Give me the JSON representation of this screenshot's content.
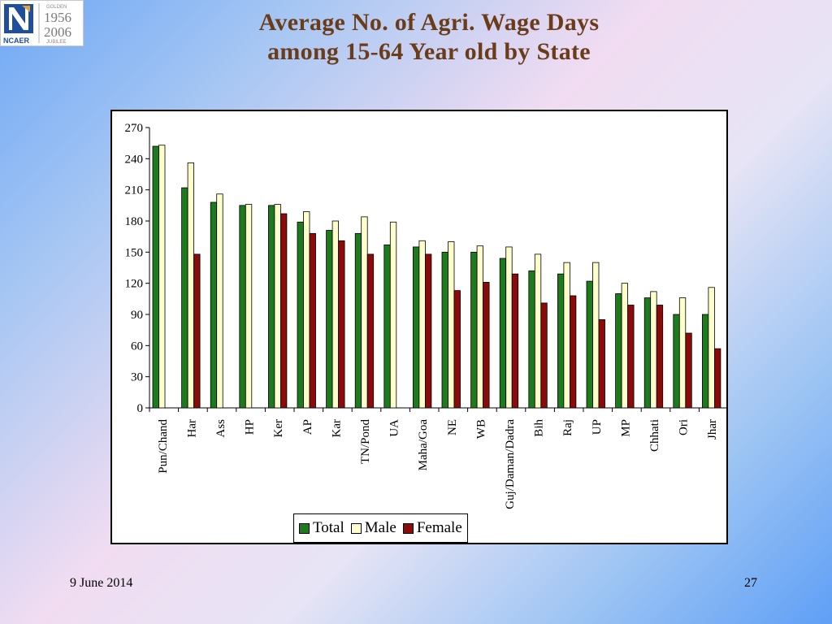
{
  "header": {
    "title_line1": "Average No. of Agri. Wage Days",
    "title_line2": "among 15-64 Year old by State"
  },
  "logo": {
    "org": "NCAER",
    "year_start": "1956",
    "year_end": "2006",
    "tag_top": "GOLDEN",
    "tag_bottom": "JUBILEE"
  },
  "footer": {
    "date": "9 June 2014",
    "page": "27"
  },
  "colors": {
    "total": "#1d7a1d",
    "male": "#ffffcc",
    "female": "#8b0a0a"
  },
  "chart_data": {
    "type": "bar",
    "categories": [
      "Pun/Chand",
      "Har",
      "Ass",
      "HP",
      "Ker",
      "AP",
      "Kar",
      "TN/Pond",
      "UA",
      "Maha/Goa",
      "NE",
      "WB",
      "Guj/Daman/Dadra",
      "Bih",
      "Raj",
      "UP",
      "MP",
      "Chhati",
      "Ori",
      "Jhar"
    ],
    "series": [
      {
        "name": "Total",
        "values": [
          252,
          212,
          198,
          195,
          195,
          179,
          171,
          168,
          157,
          155,
          150,
          150,
          144,
          132,
          129,
          122,
          110,
          106,
          90,
          90
        ]
      },
      {
        "name": "Male",
        "values": [
          253,
          236,
          206,
          196,
          196,
          189,
          180,
          184,
          179,
          161,
          160,
          156,
          155,
          148,
          140,
          140,
          120,
          112,
          106,
          116
        ]
      },
      {
        "name": "Female",
        "values": [
          null,
          148,
          null,
          null,
          187,
          168,
          161,
          148,
          null,
          148,
          113,
          121,
          129,
          101,
          108,
          85,
          99,
          99,
          72,
          57
        ]
      }
    ],
    "ylim": [
      0,
      270
    ],
    "yticks": [
      0,
      30,
      60,
      90,
      120,
      150,
      180,
      210,
      240,
      270
    ],
    "legend_position": "bottom",
    "grid": false
  }
}
